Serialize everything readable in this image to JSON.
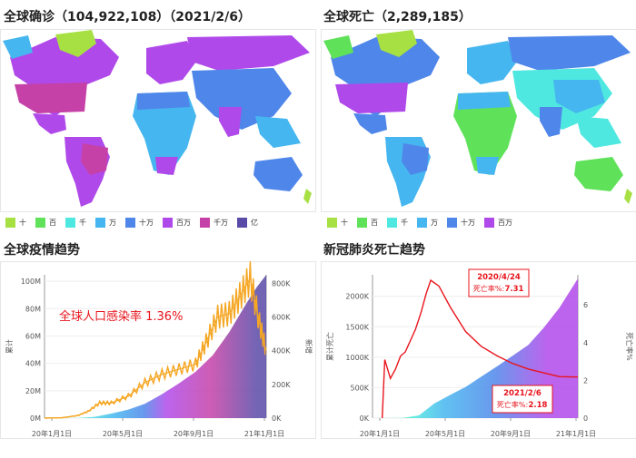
{
  "panels": {
    "map_confirmed": {
      "title": "全球确诊（104,922,108）（2021/2/6）"
    },
    "map_deaths": {
      "title": "全球死亡（2,289,185）"
    },
    "trend_confirmed": {
      "title": "全球疫情趋势"
    },
    "trend_deaths": {
      "title": "新冠肺炎死亡趋势"
    }
  },
  "legend_confirmed": [
    {
      "label": "十",
      "color": "#a7e043"
    },
    {
      "label": "百",
      "color": "#5fe25a"
    },
    {
      "label": "千",
      "color": "#4fe8e0"
    },
    {
      "label": "万",
      "color": "#45b6ef"
    },
    {
      "label": "十万",
      "color": "#4f86ea"
    },
    {
      "label": "百万",
      "color": "#b049ea"
    },
    {
      "label": "千万",
      "color": "#c541a7"
    },
    {
      "label": "亿",
      "color": "#5a4aa7"
    }
  ],
  "legend_deaths": [
    {
      "label": "十",
      "color": "#a7e043"
    },
    {
      "label": "百",
      "color": "#5fe25a"
    },
    {
      "label": "千",
      "color": "#4fe8e0"
    },
    {
      "label": "万",
      "color": "#45b6ef"
    },
    {
      "label": "十万",
      "color": "#4f86ea"
    },
    {
      "label": "百万",
      "color": "#b049ea"
    }
  ],
  "chart_data": [
    {
      "type": "area",
      "title": "全球疫情趋势",
      "annotation": "全球人口感染率 1.36%",
      "ylabel_left": "累计",
      "ylabel_right": "新增",
      "yticks_left": [
        "0M",
        "20M",
        "40M",
        "60M",
        "80M",
        "100M"
      ],
      "yticks_right": [
        "0K",
        "200K",
        "400K",
        "600K",
        "800K"
      ],
      "xticks": [
        "20年1月1日",
        "20年5月1日",
        "20年9月1日",
        "21年1月1日"
      ],
      "x_range": [
        "2020-01-01",
        "2021-02-06"
      ],
      "ylim_left": [
        0,
        105
      ],
      "ylim_right": [
        0,
        850
      ],
      "series": [
        {
          "role": "cumulative",
          "x": [
            "2020-01-01",
            "2020-03-01",
            "2020-04-01",
            "2020-05-01",
            "2020-06-01",
            "2020-07-01",
            "2020-08-01",
            "2020-09-01",
            "2020-10-01",
            "2020-11-01",
            "2020-12-01",
            "2021-01-01",
            "2021-01-20",
            "2021-02-06"
          ],
          "values": [
            0,
            0.1,
            0.9,
            3.3,
            6.2,
            10.5,
            17.5,
            25.5,
            34,
            46,
            63,
            84,
            96,
            104.9
          ],
          "colors": [
            "#5fe25a",
            "#4fe8e0",
            "#45b6ef",
            "#4f86ea",
            "#b049ea",
            "#c541a7",
            "#5a4aa7"
          ]
        },
        {
          "role": "daily_new",
          "x": [
            "2020-01-01",
            "2020-02-01",
            "2020-03-01",
            "2020-03-20",
            "2020-04-10",
            "2020-05-01",
            "2020-06-01",
            "2020-07-01",
            "2020-08-01",
            "2020-09-01",
            "2020-10-01",
            "2020-10-20",
            "2020-11-10",
            "2020-12-01",
            "2020-12-20",
            "2021-01-08",
            "2021-01-25",
            "2021-02-06"
          ],
          "values": [
            0,
            2,
            15,
            40,
            90,
            90,
            130,
            210,
            260,
            290,
            320,
            450,
            600,
            620,
            720,
            830,
            560,
            400
          ],
          "color": "#f5a623"
        }
      ]
    },
    {
      "type": "area",
      "title": "新冠肺炎死亡趋势",
      "ylabel_left": "累计死亡",
      "ylabel_right": "死亡率%",
      "yticks_left": [
        "0K",
        "500K",
        "1000K",
        "1500K",
        "2000K"
      ],
      "yticks_right": [
        "0",
        "2",
        "4",
        "6"
      ],
      "xticks": [
        "20年1月1日",
        "20年5月1日",
        "20年9月1日",
        "21年1月1日"
      ],
      "x_range": [
        "2020-01-01",
        "2021-02-06"
      ],
      "ylim_left": [
        0,
        2350
      ],
      "ylim_right": [
        0,
        7.6
      ],
      "annotations": [
        {
          "date_label": "2020/4/24",
          "rate_prefix": "死亡率%:",
          "rate": "7.31"
        },
        {
          "date_label": "2021/2/6",
          "rate_prefix": "死亡率%:",
          "rate": "2.18"
        }
      ],
      "series": [
        {
          "role": "cumulative_deaths",
          "x": [
            "2020-01-01",
            "2020-03-01",
            "2020-04-01",
            "2020-05-01",
            "2020-06-01",
            "2020-07-01",
            "2020-08-01",
            "2020-09-01",
            "2020-10-01",
            "2020-11-01",
            "2020-12-01",
            "2021-01-01",
            "2021-02-06"
          ],
          "values": [
            0,
            3,
            45,
            240,
            380,
            510,
            680,
            850,
            1020,
            1200,
            1480,
            1810,
            2289
          ],
          "colors": [
            "#5fe25a",
            "#4fe8e0",
            "#45b6ef",
            "#4f86ea",
            "#b049ea"
          ]
        },
        {
          "role": "death_rate",
          "x": [
            "2020-01-20",
            "2020-01-25",
            "2020-02-05",
            "2020-02-15",
            "2020-02-25",
            "2020-03-05",
            "2020-03-15",
            "2020-03-25",
            "2020-04-05",
            "2020-04-15",
            "2020-04-24",
            "2020-05-10",
            "2020-06-01",
            "2020-07-01",
            "2020-08-01",
            "2020-09-01",
            "2020-10-01",
            "2020-11-01",
            "2020-12-01",
            "2021-01-01",
            "2021-02-06"
          ],
          "values": [
            0,
            3.1,
            2.1,
            2.6,
            3.3,
            3.5,
            4.1,
            4.7,
            5.6,
            6.6,
            7.31,
            7.0,
            5.9,
            4.6,
            3.8,
            3.3,
            2.9,
            2.6,
            2.4,
            2.2,
            2.18
          ],
          "color": "#e8141c"
        }
      ]
    }
  ]
}
